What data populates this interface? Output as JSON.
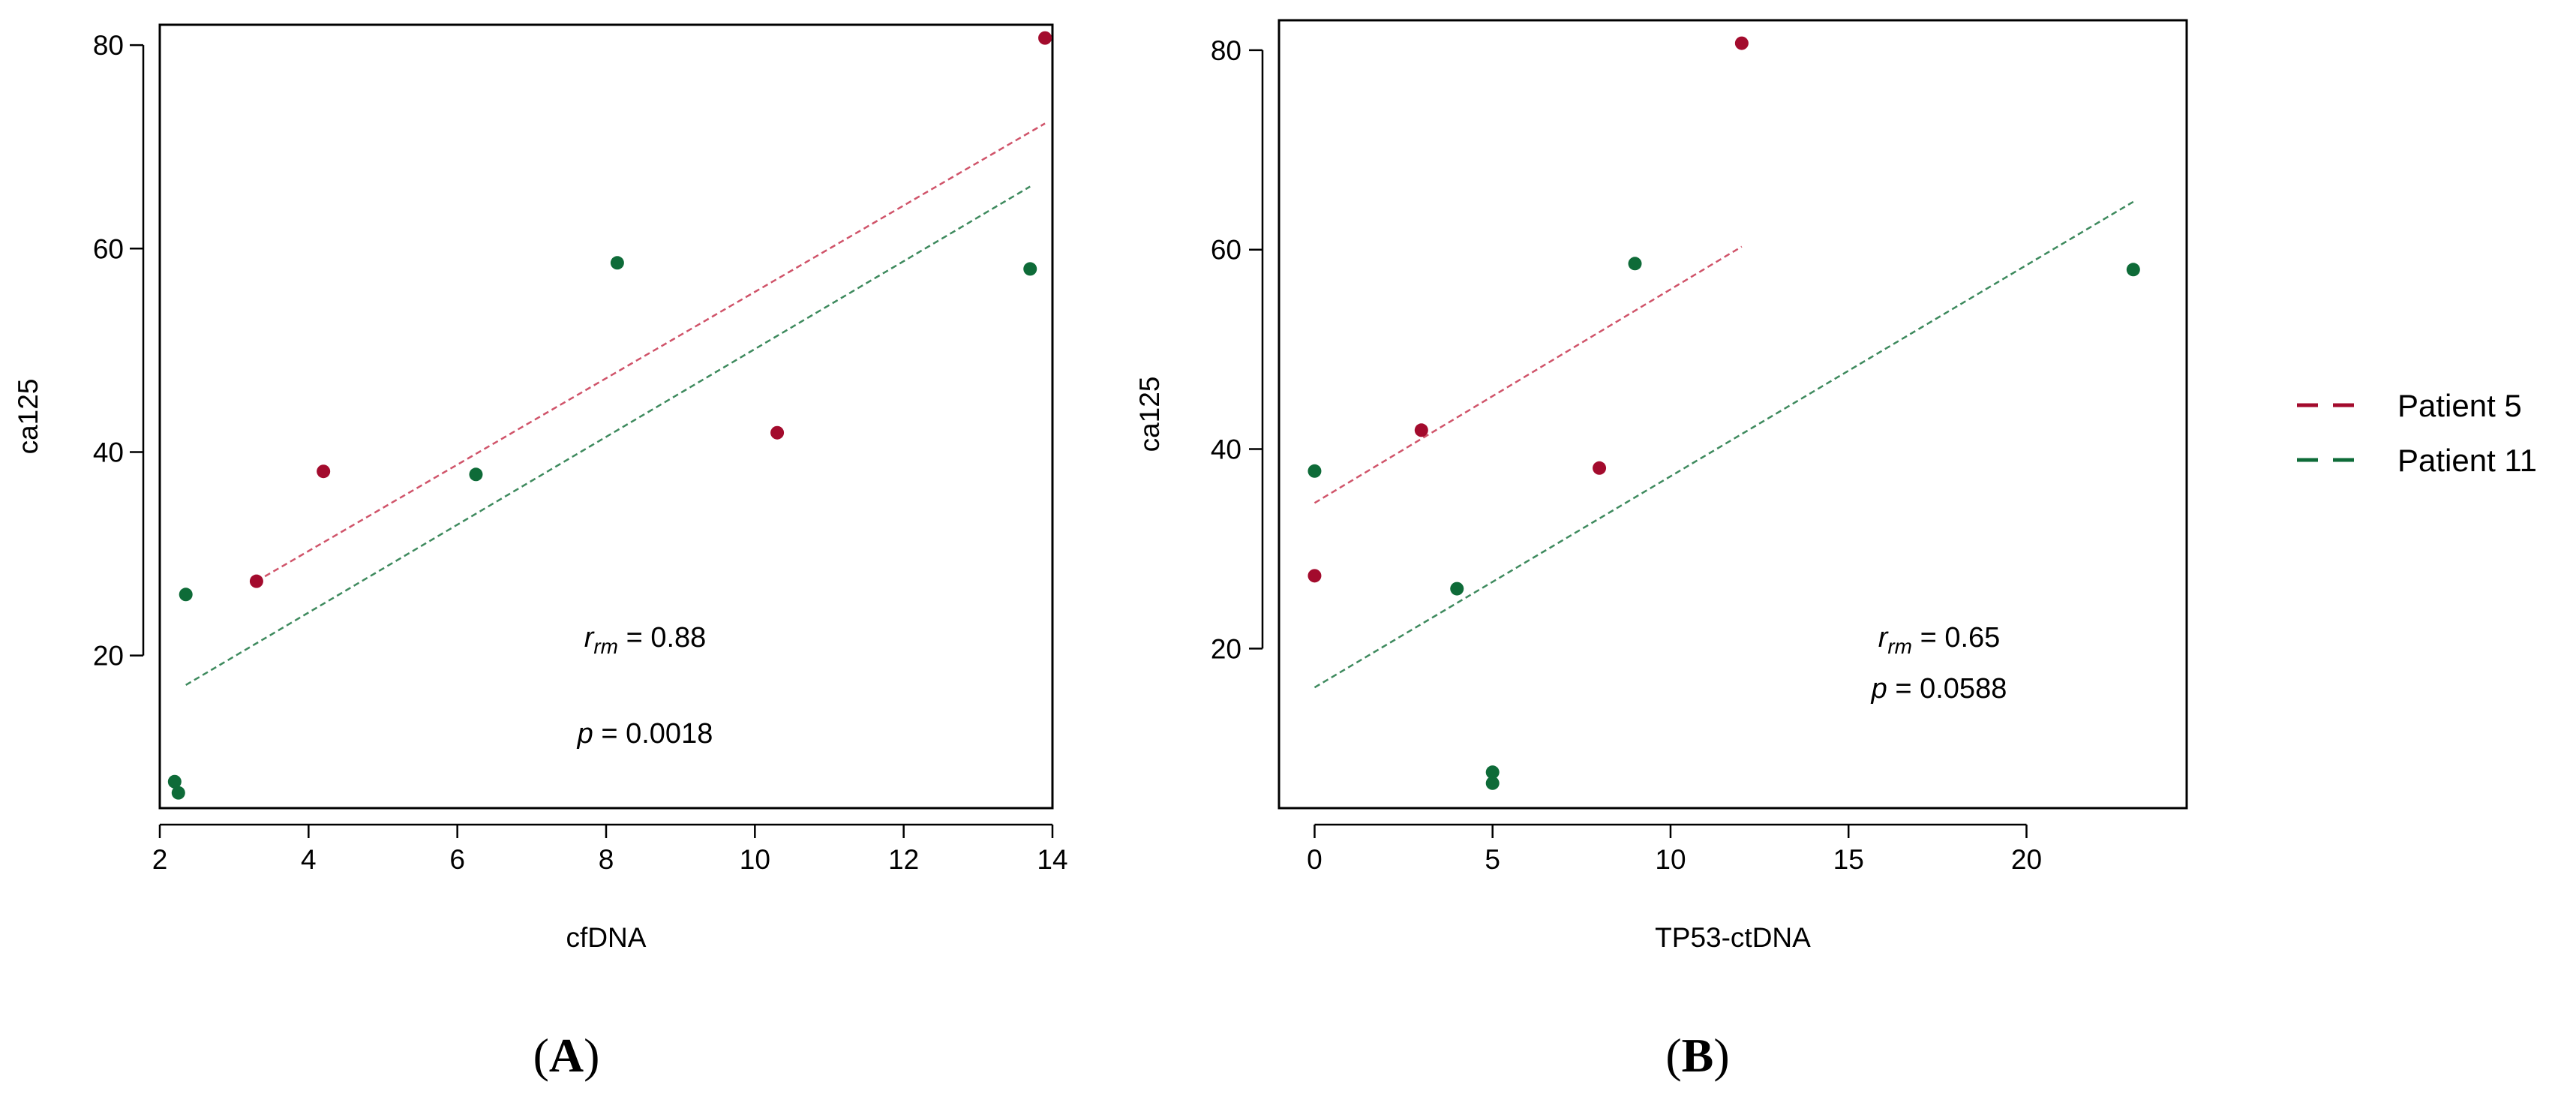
{
  "colors": {
    "patient5": "#A30B2D",
    "patient11": "#0E6B38",
    "patient5_line": "#D0546A",
    "patient11_line": "#3E8A5E"
  },
  "legend": {
    "items": [
      {
        "label": "Patient 5",
        "series": "patient5"
      },
      {
        "label": "Patient 11",
        "series": "patient11"
      }
    ]
  },
  "chart_data": [
    {
      "id": "A",
      "type": "scatter",
      "panel_label": "A",
      "xlabel": "cfDNA",
      "ylabel": "ca125",
      "xlim": [
        2,
        14
      ],
      "ylim": [
        5,
        82
      ],
      "xticks": [
        2,
        4,
        6,
        8,
        10,
        12,
        14
      ],
      "yticks": [
        20,
        40,
        60,
        80
      ],
      "annotation": {
        "r_main": "r",
        "r_sub": "rm",
        "r_value": " = 0.88",
        "p_main": "p",
        "p_value": " = 0.0018"
      },
      "series": [
        {
          "name": "Patient 5",
          "key": "patient5",
          "points": [
            {
              "x": 3.3,
              "y": 27.3
            },
            {
              "x": 4.2,
              "y": 38.1
            },
            {
              "x": 10.3,
              "y": 41.9
            },
            {
              "x": 13.9,
              "y": 80.7
            }
          ],
          "fit": [
            {
              "x": 3.3,
              "y": 27.3
            },
            {
              "x": 13.9,
              "y": 72.3
            }
          ]
        },
        {
          "name": "Patient 11",
          "key": "patient11",
          "points": [
            {
              "x": 2.2,
              "y": 7.6
            },
            {
              "x": 2.25,
              "y": 6.5
            },
            {
              "x": 2.35,
              "y": 26.0
            },
            {
              "x": 6.25,
              "y": 37.8
            },
            {
              "x": 8.15,
              "y": 58.6
            },
            {
              "x": 13.7,
              "y": 58.0
            }
          ],
          "fit": [
            {
              "x": 2.35,
              "y": 17.1
            },
            {
              "x": 13.7,
              "y": 66.1
            }
          ]
        }
      ]
    },
    {
      "id": "B",
      "type": "scatter",
      "panel_label": "B",
      "xlabel": "TP53-ctDNA",
      "ylabel": "ca125",
      "xlim": [
        -1,
        24.5
      ],
      "ylim": [
        4,
        83
      ],
      "xticks": [
        0,
        5,
        10,
        15,
        20
      ],
      "yticks": [
        20,
        40,
        60,
        80
      ],
      "annotation": {
        "r_main": "r",
        "r_sub": "rm",
        "r_value": " = 0.65",
        "p_main": "p",
        "p_value": " = 0.0588"
      },
      "series": [
        {
          "name": "Patient 5",
          "key": "patient5",
          "points": [
            {
              "x": 0,
              "y": 27.3
            },
            {
              "x": 3,
              "y": 41.9
            },
            {
              "x": 8,
              "y": 38.1
            },
            {
              "x": 12,
              "y": 80.7
            }
          ],
          "fit": [
            {
              "x": 0,
              "y": 34.6
            },
            {
              "x": 12,
              "y": 60.3
            }
          ]
        },
        {
          "name": "Patient 11",
          "key": "patient11",
          "points": [
            {
              "x": 0,
              "y": 37.8
            },
            {
              "x": 4,
              "y": 26.0
            },
            {
              "x": 5,
              "y": 7.6
            },
            {
              "x": 5,
              "y": 6.5
            },
            {
              "x": 9,
              "y": 58.6
            },
            {
              "x": 23,
              "y": 58.0
            }
          ],
          "fit": [
            {
              "x": 0,
              "y": 16.1
            },
            {
              "x": 23,
              "y": 64.8
            }
          ]
        }
      ]
    }
  ]
}
